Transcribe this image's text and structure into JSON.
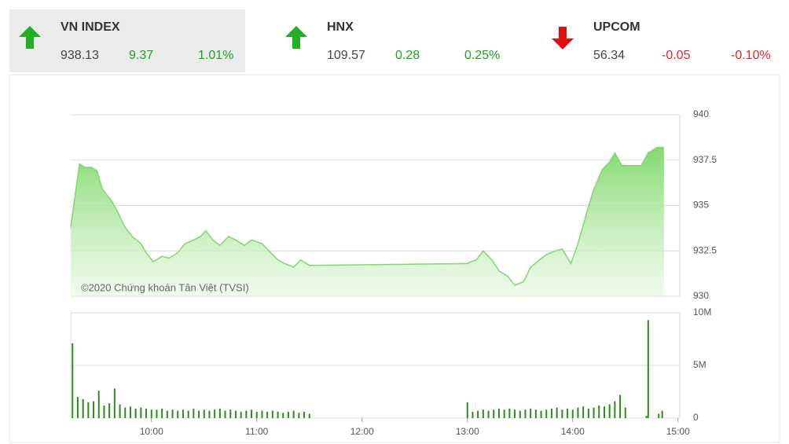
{
  "indices": [
    {
      "name": "VN INDEX",
      "value": "938.13",
      "change": "9.37",
      "change_pct": "1.01%",
      "direction": "up",
      "selected": true
    },
    {
      "name": "HNX",
      "value": "109.57",
      "change": "0.28",
      "change_pct": "0.25%",
      "direction": "up",
      "selected": false
    },
    {
      "name": "UPCOM",
      "value": "56.34",
      "change": "-0.05",
      "change_pct": "-0.10%",
      "direction": "down",
      "selected": false
    }
  ],
  "chart_data": [
    {
      "type": "area",
      "annotation": "©2020 Chứng khoán Tân Việt (TVSI)",
      "color": "#86d476",
      "x": [
        554,
        557,
        559,
        562,
        566,
        569,
        572,
        577,
        581,
        585,
        589,
        594,
        597,
        601,
        606,
        610,
        615,
        619,
        624,
        628,
        631,
        635,
        639,
        644,
        648,
        653,
        657,
        663,
        667,
        672,
        676,
        681,
        685,
        690,
        780,
        782,
        785,
        789,
        794,
        798,
        803,
        807,
        812,
        816,
        821,
        825,
        830,
        834,
        839,
        843,
        848,
        852,
        857,
        861,
        864,
        868,
        872,
        879,
        883,
        888,
        892
      ],
      "values": [
        933.8,
        935.9,
        937.3,
        937.1,
        937.1,
        936.9,
        935.9,
        935.3,
        934.6,
        933.8,
        933.3,
        932.9,
        932.4,
        931.9,
        932.2,
        932.1,
        932.4,
        932.9,
        933.1,
        933.3,
        933.6,
        933.1,
        932.8,
        933.3,
        933.1,
        932.8,
        933.1,
        932.9,
        932.5,
        932,
        931.8,
        931.6,
        932,
        931.7,
        931.8,
        931.9,
        932,
        932.5,
        932,
        931.4,
        931.1,
        930.6,
        930.8,
        931.6,
        932,
        932.3,
        932.5,
        932.6,
        931.8,
        932.9,
        934.6,
        935.9,
        937,
        937.4,
        937.9,
        937.2,
        937.2,
        937.2,
        937.9,
        938.2,
        938.2
      ],
      "xlim": [
        554,
        901
      ],
      "ylim": [
        930,
        940
      ],
      "yticks": [
        930,
        932.5,
        935,
        937.5,
        940
      ],
      "grid": true
    },
    {
      "type": "bar",
      "color": "#2e8b1e",
      "x": [
        555,
        558,
        561,
        564,
        567,
        570,
        573,
        576,
        579,
        582,
        585,
        588,
        591,
        594,
        597,
        600,
        603,
        606,
        609,
        612,
        615,
        618,
        621,
        624,
        627,
        630,
        633,
        636,
        639,
        642,
        645,
        648,
        651,
        654,
        657,
        660,
        663,
        666,
        669,
        672,
        675,
        678,
        681,
        684,
        687,
        690,
        780,
        783,
        786,
        789,
        792,
        795,
        798,
        801,
        804,
        807,
        810,
        813,
        816,
        819,
        822,
        825,
        828,
        831,
        834,
        837,
        840,
        843,
        846,
        849,
        852,
        855,
        858,
        861,
        864,
        867,
        870,
        882,
        883,
        889,
        891
      ],
      "values": [
        7100000,
        2000000,
        1800000,
        1500000,
        1600000,
        2600000,
        1200000,
        1400000,
        2800000,
        1300000,
        1000000,
        1100000,
        900000,
        1000000,
        900000,
        800000,
        800000,
        900000,
        700000,
        800000,
        700000,
        800000,
        700000,
        900000,
        700000,
        800000,
        700000,
        800000,
        900000,
        700000,
        800000,
        700000,
        600000,
        700000,
        800000,
        600000,
        700000,
        600000,
        700000,
        600000,
        500000,
        600000,
        700000,
        500000,
        600000,
        400000,
        1500000,
        600000,
        700000,
        800000,
        700000,
        800000,
        900000,
        800000,
        900000,
        800000,
        700000,
        800000,
        900000,
        800000,
        700000,
        800000,
        900000,
        1000000,
        800000,
        900000,
        800000,
        1000000,
        1100000,
        900000,
        1000000,
        1200000,
        1100000,
        1300000,
        1600000,
        2200000,
        1000000,
        200000,
        9300000,
        400000,
        700000
      ],
      "xlim": [
        554,
        901
      ],
      "ylim": [
        0,
        10000000
      ],
      "yticks": [
        0,
        {
          "value": 5000000,
          "label": "5M"
        },
        {
          "value": 10000000,
          "label": "10M"
        }
      ],
      "xticks": [
        {
          "value": 600,
          "label": "10:00"
        },
        {
          "value": 660,
          "label": "11:00"
        },
        {
          "value": 720,
          "label": "12:00"
        },
        {
          "value": 780,
          "label": "13:00"
        },
        {
          "value": 840,
          "label": "14:00"
        },
        {
          "value": 900,
          "label": "15:00"
        }
      ],
      "grid": true
    }
  ]
}
